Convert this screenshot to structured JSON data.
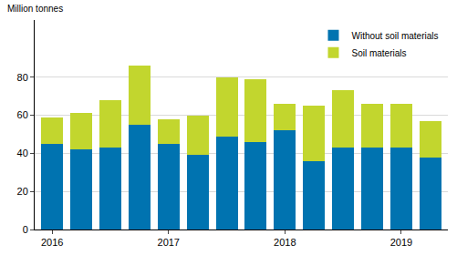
{
  "chart_data": {
    "type": "bar",
    "stacked": true,
    "y_label": "Million tonnes",
    "categories": [
      "2016",
      null,
      null,
      null,
      "2017",
      null,
      null,
      null,
      "2018",
      null,
      null,
      null,
      "2019",
      null
    ],
    "series": [
      {
        "name": "Without soil materials",
        "color": "#0073b0",
        "values": [
          45,
          42,
          43,
          55,
          45,
          39,
          49,
          46,
          52,
          36,
          43,
          43,
          43,
          38
        ]
      },
      {
        "name": "Soil materials",
        "color": "#c2d62e",
        "values": [
          14,
          19,
          25,
          31,
          13,
          21,
          31,
          33,
          14,
          29,
          30,
          23,
          23,
          19
        ]
      }
    ],
    "ylim": [
      0,
      110
    ],
    "yticks": [
      0,
      20,
      40,
      60,
      80
    ],
    "grid": true,
    "legend": "top-right"
  }
}
